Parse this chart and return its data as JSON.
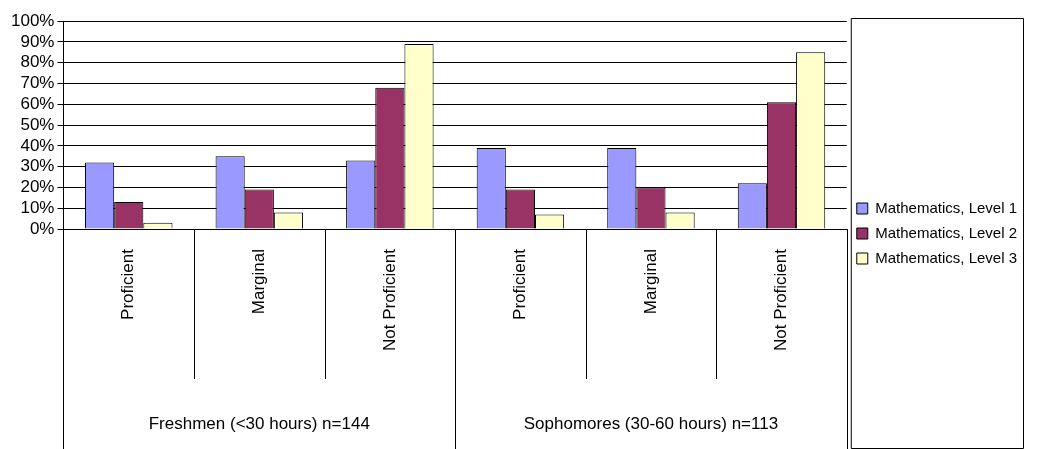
{
  "chart_data": {
    "type": "bar",
    "categories": [
      "Proficient",
      "Marginal",
      "Not Proficient",
      "Proficient",
      "Marginal",
      "Not Proficient"
    ],
    "series": [
      {
        "name": "Mathematics, Level 1",
        "color": "#9999ff",
        "values": [
          32,
          35,
          33,
          39,
          39,
          22
        ]
      },
      {
        "name": "Mathematics, Level 2",
        "color": "#993366",
        "values": [
          13,
          19,
          68,
          19,
          20,
          61
        ]
      },
      {
        "name": "Mathematics, Level 3",
        "color": "#ffffcc",
        "values": [
          3,
          8,
          89,
          7,
          8,
          85
        ]
      }
    ],
    "annotations": [
      "Freshmen (<30 hours) n=144",
      "Sophomores (30-60 hours) n=113"
    ],
    "ylim": [
      0,
      100
    ],
    "yticks": [
      {
        "value": 0,
        "label": "0%"
      },
      {
        "value": 10,
        "label": "10%"
      },
      {
        "value": 20,
        "label": "20%"
      },
      {
        "value": 30,
        "label": "30%"
      },
      {
        "value": 40,
        "label": "40%"
      },
      {
        "value": 50,
        "label": "50%"
      },
      {
        "value": 60,
        "label": "60%"
      },
      {
        "value": 70,
        "label": "70%"
      },
      {
        "value": 80,
        "label": "80%"
      },
      {
        "value": 90,
        "label": "90%"
      },
      {
        "value": 100,
        "label": "100%"
      }
    ],
    "grid": "y",
    "legend": "right"
  }
}
